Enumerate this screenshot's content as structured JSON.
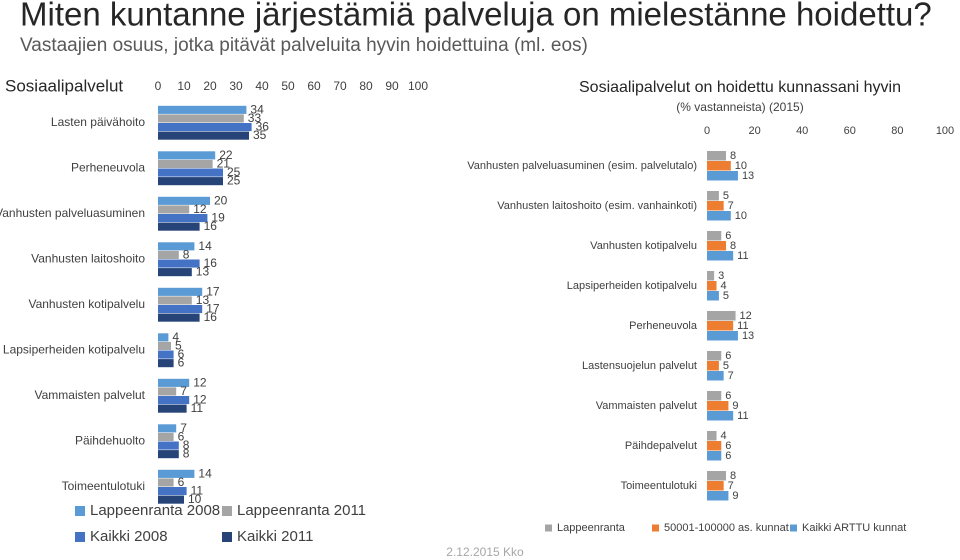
{
  "title": "Miten kuntanne järjestämiä palveluja on mielestänne hoidettu?",
  "subtitle": "Vastaajien osuus, jotka pitävät palveluita hyvin hoidettuina (ml. eos)",
  "footer": "2.12.2015 Kko",
  "chart_data": [
    {
      "type": "hbar",
      "title": "Sosiaalipalvelut",
      "categories": [
        "Lasten päivähoito",
        "Perheneuvola",
        "Vanhusten palveluasuminen",
        "Vanhusten laitoshoito",
        "Vanhusten kotipalvelu",
        "Lapsiperheiden kotipalvelu",
        "Vammaisten palvelut",
        "Päihdehuolto",
        "Toimeentulotuki"
      ],
      "series": [
        {
          "name": "Lappeenranta 2008",
          "color": "#5b9bd5",
          "values": [
            34,
            22,
            20,
            14,
            17,
            4,
            12,
            7,
            14
          ]
        },
        {
          "name": "Lappeenranta 2011",
          "color": "#a5a5a5",
          "values": [
            33,
            21,
            12,
            8,
            13,
            5,
            7,
            6,
            6
          ]
        },
        {
          "name": "Kaikki 2008",
          "color": "#4472c4",
          "values": [
            36,
            25,
            19,
            16,
            17,
            6,
            12,
            8,
            11
          ]
        },
        {
          "name": "Kaikki 2011",
          "color": "#264478",
          "values": [
            35,
            25,
            16,
            13,
            16,
            6,
            11,
            8,
            10
          ]
        }
      ],
      "xlim": [
        0,
        100
      ],
      "xticks": [
        0,
        10,
        20,
        30,
        40,
        50,
        60,
        70,
        80,
        90,
        100
      ]
    },
    {
      "type": "hbar",
      "title": "Sosiaalipalvelut on hoidettu kunnassani hyvin",
      "subtitle": "(% vastanneista) (2015)",
      "categories": [
        "Vanhusten palveluasuminen (esim. palvelutalo)",
        "Vanhusten laitoshoito (esim. vanhainkoti)",
        "Vanhusten kotipalvelu",
        "Lapsiperheiden kotipalvelu",
        "Perheneuvola",
        "Lastensuojelun palvelut",
        "Vammaisten palvelut",
        "Päihdepalvelut",
        "Toimeentulotuki"
      ],
      "series": [
        {
          "name": "Lappeenranta",
          "color": "#a5a5a5",
          "values": [
            8,
            5,
            6,
            3,
            12,
            6,
            6,
            4,
            8
          ]
        },
        {
          "name": "50001-100000 as. kunnat",
          "color": "#ed7d31",
          "values": [
            10,
            7,
            8,
            4,
            11,
            5,
            9,
            6,
            7
          ]
        },
        {
          "name": "Kaikki ARTTU kunnat",
          "color": "#5b9bd5",
          "values": [
            13,
            10,
            11,
            5,
            13,
            7,
            11,
            6,
            9
          ]
        }
      ],
      "xlim": [
        0,
        100
      ],
      "xticks": [
        0,
        20,
        40,
        60,
        80,
        100
      ]
    }
  ]
}
